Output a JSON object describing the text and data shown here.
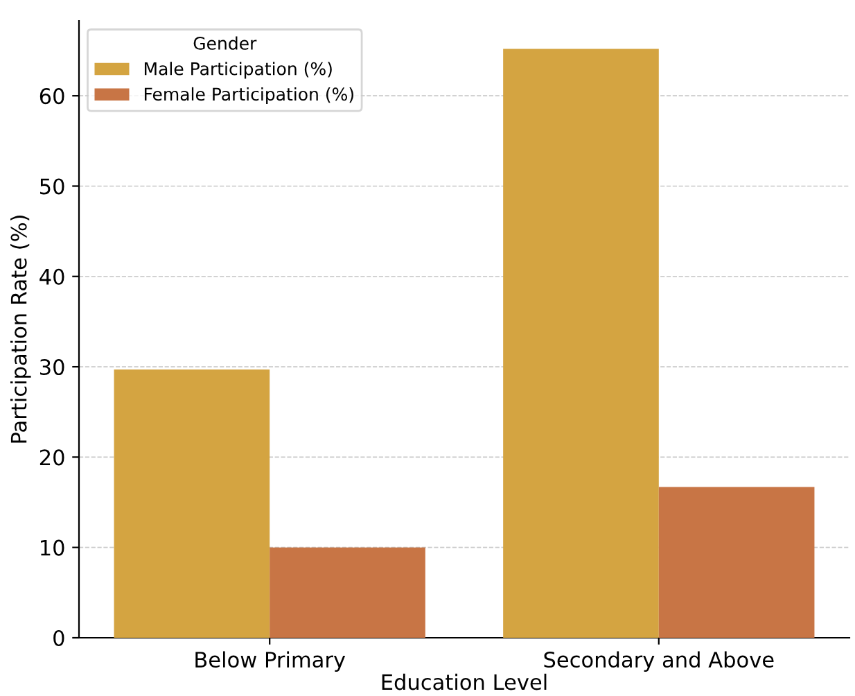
{
  "chart_data": {
    "type": "bar",
    "xlabel": "Education Level",
    "ylabel": "Participation Rate (%)",
    "legend_title": "Gender",
    "categories": [
      "Below Primary",
      "Secondary and Above"
    ],
    "series": [
      {
        "name": "Male Participation (%)",
        "color": "#d4a441",
        "values": [
          29.7,
          65.2
        ]
      },
      {
        "name": "Female Participation (%)",
        "color": "#c87545",
        "values": [
          10.0,
          16.7
        ]
      }
    ],
    "ylim": [
      0,
      68.3
    ],
    "yticks": [
      0,
      10,
      20,
      30,
      40,
      50,
      60
    ],
    "grid": "y",
    "legend": "top left"
  }
}
